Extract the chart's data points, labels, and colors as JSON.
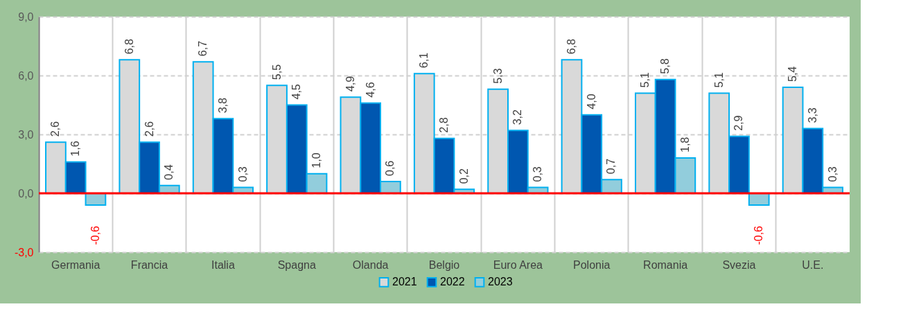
{
  "chart_data": {
    "type": "bar",
    "categories": [
      "Germania",
      "Francia",
      "Italia",
      "Spagna",
      "Olanda",
      "Belgio",
      "Euro Area",
      "Polonia",
      "Romania",
      "Svezia",
      "U.E."
    ],
    "series": [
      {
        "name": "2021",
        "color": "#d9d9d9",
        "values": [
          2.6,
          6.8,
          6.7,
          5.5,
          4.9,
          6.1,
          5.3,
          6.8,
          5.1,
          5.1,
          5.4
        ],
        "value_labels": [
          "2,6",
          "6,8",
          "6,7",
          "5,5",
          "4,9",
          "6,1",
          "5,3",
          "6,8",
          "5,1",
          "5,1",
          "5,4"
        ]
      },
      {
        "name": "2022",
        "color": "#0057b0",
        "values": [
          1.6,
          2.6,
          3.8,
          4.5,
          4.6,
          2.8,
          3.2,
          4.0,
          5.8,
          2.9,
          3.3
        ],
        "value_labels": [
          "1,6",
          "2,6",
          "3,8",
          "4,5",
          "4,6",
          "2,8",
          "3,2",
          "4,0",
          "5,8",
          "2,9",
          "3,3"
        ]
      },
      {
        "name": "2023",
        "color": "#92cddc",
        "values": [
          -0.6,
          0.4,
          0.3,
          1.0,
          0.6,
          0.2,
          0.3,
          0.7,
          1.8,
          -0.6,
          0.3
        ],
        "value_labels": [
          "-0,6",
          "0,4",
          "0,3",
          "1,0",
          "0,6",
          "0,2",
          "0,3",
          "0,7",
          "1,8",
          "-0,6",
          "0,3"
        ]
      }
    ],
    "ylim": [
      -3,
      9
    ],
    "yticks": [
      {
        "value": -3,
        "label": "-3,0"
      },
      {
        "value": 0,
        "label": "0,0"
      },
      {
        "value": 3,
        "label": "3,0"
      },
      {
        "value": 6,
        "label": "6,0"
      },
      {
        "value": 9,
        "label": "9,0"
      }
    ],
    "ref_lines": [
      {
        "axis": "y",
        "value": 0,
        "color": "#ff0000"
      }
    ],
    "grid": true,
    "legend": "bottom"
  }
}
